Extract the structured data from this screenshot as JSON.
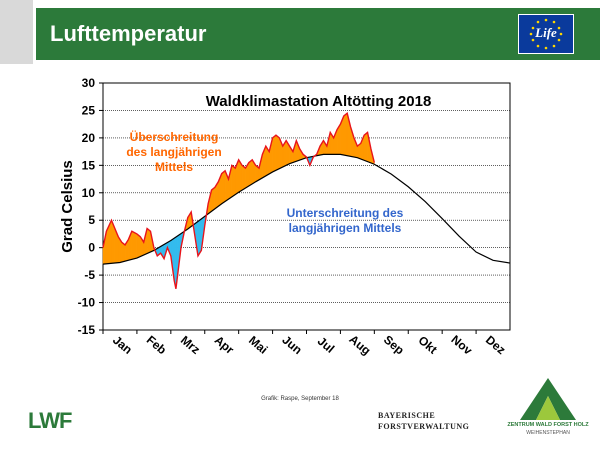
{
  "slide": {
    "title": "Lufttemperatur",
    "credit": "Grafik: Raspe, September 18"
  },
  "logos": {
    "eu_life": "Life",
    "lwf": "LWF",
    "bayern_line1": "BAYERISCHE",
    "bayern_line2": "FORSTVERWALTUNG",
    "zentrum_line1": "ZENTRUM WALD FORST HOLZ",
    "zentrum_line2": "WEIHENSTEPHAN"
  },
  "colors": {
    "header_green": "#2c7a3a",
    "above_fill": "#ff9900",
    "below_fill": "#33bbee",
    "actual_line": "#e8141b",
    "mean_line": "#000000",
    "above_text": "#ff6600",
    "below_text": "#3366cc"
  },
  "chart_data": {
    "type": "area",
    "title": "Waldklimastation Altötting 2018",
    "xlabel": "",
    "ylabel": "Grad Celsius",
    "ylim": [
      -15,
      30
    ],
    "yticks": [
      -15,
      -10,
      -5,
      0,
      5,
      10,
      15,
      20,
      25,
      30
    ],
    "xlim": [
      0,
      12
    ],
    "categories": [
      "Jan",
      "Feb",
      "Mrz",
      "Apr",
      "Mai",
      "Jun",
      "Jul",
      "Aug",
      "Sep",
      "Okt",
      "Nov",
      "Dez"
    ],
    "grid": true,
    "annotations": [
      {
        "lines": [
          "Überschreitung",
          "des langjährigen",
          "Mittels"
        ],
        "kind": "above"
      },
      {
        "lines": [
          "Unterschreitung des",
          "langjährigen Mittels"
        ],
        "kind": "below"
      }
    ],
    "series": [
      {
        "kind": "mean",
        "x": [
          0,
          0.5,
          1,
          1.5,
          2,
          2.5,
          3,
          3.5,
          4,
          4.5,
          5,
          5.5,
          6,
          6.5,
          7,
          7.5,
          8,
          8.5,
          9,
          9.5,
          10,
          10.5,
          11,
          11.5,
          12
        ],
        "y": [
          -3,
          -2.7,
          -1.9,
          -0.5,
          1.3,
          3.4,
          5.7,
          8.0,
          10.1,
          12.0,
          13.8,
          15.3,
          16.4,
          17.0,
          17.0,
          16.4,
          15.2,
          13.4,
          11.1,
          8.4,
          5.3,
          2.1,
          -0.8,
          -2.3,
          -2.8
        ]
      },
      {
        "kind": "actual",
        "x": [
          0,
          0.1,
          0.25,
          0.35,
          0.45,
          0.55,
          0.65,
          0.75,
          0.85,
          1.0,
          1.1,
          1.2,
          1.3,
          1.4,
          1.5,
          1.6,
          1.7,
          1.8,
          1.9,
          2.0,
          2.1,
          2.15,
          2.2,
          2.3,
          2.4,
          2.5,
          2.6,
          2.7,
          2.8,
          2.9,
          3.0,
          3.1,
          3.2,
          3.3,
          3.4,
          3.5,
          3.6,
          3.7,
          3.8,
          3.9,
          4.0,
          4.1,
          4.2,
          4.3,
          4.4,
          4.5,
          4.6,
          4.7,
          4.8,
          4.9,
          5.0,
          5.1,
          5.2,
          5.3,
          5.4,
          5.5,
          5.6,
          5.7,
          5.8,
          5.9,
          6.0,
          6.1,
          6.2,
          6.3,
          6.4,
          6.5,
          6.6,
          6.7,
          6.8,
          6.9,
          7.0,
          7.1,
          7.2,
          7.3,
          7.4,
          7.5,
          7.6,
          7.7,
          7.8,
          7.9,
          8.0
        ],
        "y": [
          0,
          3.0,
          5.0,
          3.5,
          2.0,
          1.0,
          0.5,
          1.5,
          3.0,
          2.5,
          2.0,
          1.0,
          3.5,
          3.0,
          0,
          -1.5,
          -1.0,
          -2.0,
          0,
          -1.5,
          -6.0,
          -7.5,
          -5.0,
          0,
          3.0,
          5.5,
          6.5,
          2.5,
          -1.5,
          -0.5,
          4.0,
          8.0,
          10.5,
          11.0,
          12.0,
          13.5,
          14.0,
          12.5,
          15.0,
          14.5,
          16.0,
          15.0,
          14.5,
          15.5,
          16.0,
          15.0,
          14.5,
          17.0,
          18.5,
          17.5,
          20.0,
          20.5,
          20.0,
          18.5,
          19.5,
          18.5,
          17.5,
          19.5,
          18.0,
          17.0,
          16.5,
          15.0,
          16.5,
          17.0,
          18.5,
          19.5,
          18.5,
          21.0,
          20.0,
          21.5,
          22.5,
          24.0,
          24.5,
          22.0,
          20.0,
          18.5,
          19.0,
          20.5,
          21.0,
          18.0,
          15.5
        ]
      }
    ]
  }
}
